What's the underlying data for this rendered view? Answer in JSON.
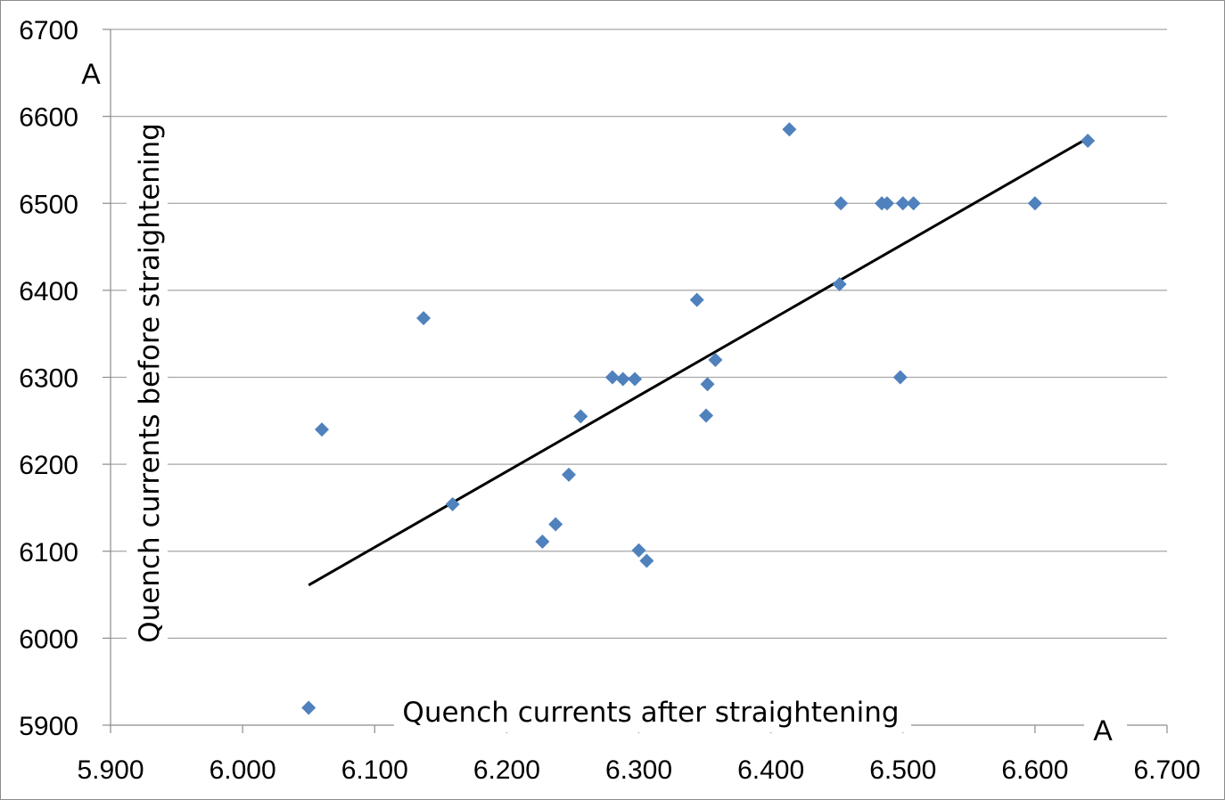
{
  "chart_data": {
    "type": "scatter",
    "title": "",
    "xlabel": "Quench currents after straightening",
    "ylabel": "Quench currents before straightening",
    "xunit": "A",
    "yunit": "A",
    "xlim": [
      5.9,
      6.7
    ],
    "ylim": [
      5900,
      6700
    ],
    "xticks": [
      5.9,
      6.0,
      6.1,
      6.2,
      6.3,
      6.4,
      6.5,
      6.6,
      6.7
    ],
    "xtick_labels": [
      "5.900",
      "6.000",
      "6.100",
      "6.200",
      "6.300",
      "6.400",
      "6.500",
      "6.600",
      "6.700"
    ],
    "yticks": [
      5900,
      6000,
      6100,
      6200,
      6300,
      6400,
      6500,
      6600,
      6700
    ],
    "ytick_labels": [
      "5900",
      "6000",
      "6100",
      "6200",
      "6300",
      "6400",
      "6500",
      "6600",
      "6700"
    ],
    "grid": "horizontal",
    "marker_color": "#4f81bd",
    "marker": "diamond",
    "trendline_color": "#000000",
    "series": [
      {
        "points": [
          [
            6.05,
            5920
          ],
          [
            6.06,
            6240
          ],
          [
            6.137,
            6368
          ],
          [
            6.159,
            6154
          ],
          [
            6.227,
            6111
          ],
          [
            6.237,
            6131
          ],
          [
            6.247,
            6188
          ],
          [
            6.256,
            6255
          ],
          [
            6.28,
            6300
          ],
          [
            6.288,
            6298
          ],
          [
            6.297,
            6298
          ],
          [
            6.3,
            6101
          ],
          [
            6.306,
            6089
          ],
          [
            6.344,
            6389
          ],
          [
            6.351,
            6256
          ],
          [
            6.352,
            6292
          ],
          [
            6.358,
            6320
          ],
          [
            6.414,
            6585
          ],
          [
            6.452,
            6407
          ],
          [
            6.453,
            6500
          ],
          [
            6.484,
            6500
          ],
          [
            6.488,
            6500
          ],
          [
            6.498,
            6300
          ],
          [
            6.5,
            6500
          ],
          [
            6.508,
            6500
          ],
          [
            6.6,
            6500
          ],
          [
            6.64,
            6572
          ]
        ]
      }
    ],
    "trendline": {
      "x": [
        6.05,
        6.64
      ],
      "y": [
        6061,
        6575
      ]
    }
  }
}
